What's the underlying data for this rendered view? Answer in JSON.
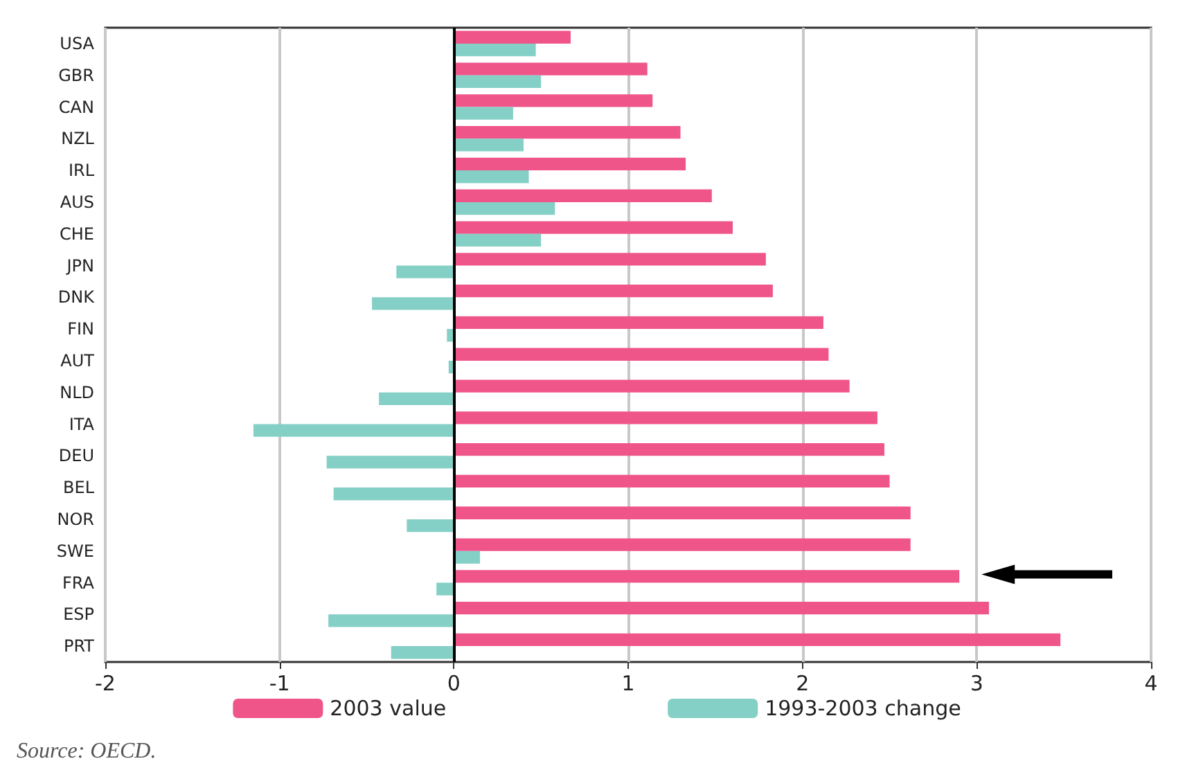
{
  "chart_data": {
    "type": "bar",
    "orientation": "horizontal",
    "categories": [
      "USA",
      "GBR",
      "CAN",
      "NZL",
      "IRL",
      "AUS",
      "CHE",
      "JPN",
      "DNK",
      "FIN",
      "AUT",
      "NLD",
      "ITA",
      "DEU",
      "BEL",
      "NOR",
      "SWE",
      "FRA",
      "ESP",
      "PRT"
    ],
    "series": [
      {
        "name": "2003 value",
        "color": "#f0558a",
        "values": [
          0.67,
          1.11,
          1.14,
          1.3,
          1.33,
          1.48,
          1.6,
          1.79,
          1.83,
          2.12,
          2.15,
          2.27,
          2.43,
          2.47,
          2.5,
          2.62,
          2.62,
          2.9,
          3.07,
          3.48
        ]
      },
      {
        "name": "1993-2003 change",
        "color": "#84d0c6",
        "values": [
          0.47,
          0.5,
          0.34,
          0.4,
          0.43,
          0.58,
          0.5,
          -0.33,
          -0.47,
          -0.04,
          -0.03,
          -0.43,
          -1.15,
          -0.73,
          -0.69,
          -0.27,
          0.15,
          -0.1,
          -0.72,
          -0.36
        ]
      }
    ],
    "xlim": [
      -2,
      4
    ],
    "xticks": [
      -2,
      -1,
      0,
      1,
      2,
      3,
      4
    ],
    "grid": "x",
    "legend": "bottom",
    "annotations": [
      "Source: OECD."
    ]
  }
}
